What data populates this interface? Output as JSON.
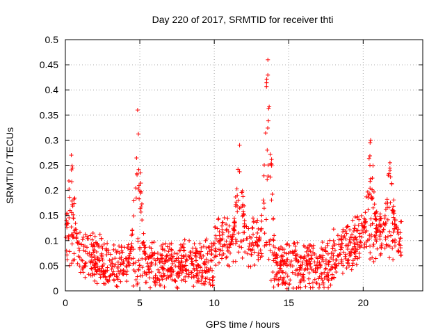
{
  "chart_data": {
    "type": "scatter",
    "title": "Day 220 of 2017, SRMTID for receiver thti",
    "xlabel": "GPS time / hours",
    "ylabel": "SRMTID / TECUs",
    "xlim": [
      0,
      24
    ],
    "ylim": [
      0,
      0.5
    ],
    "x_ticks": [
      "0",
      "5",
      "10",
      "15",
      "20"
    ],
    "y_ticks": [
      "0",
      "0.05",
      "0.1",
      "0.15",
      "0.2",
      "0.25",
      "0.3",
      "0.35",
      "0.4",
      "0.45",
      "0.5"
    ],
    "grid": true,
    "marker": "plus",
    "color": "#ff0000",
    "points_summary": {
      "x_range": [
        0,
        22.6
      ],
      "baseline_level": [
        0.03,
        0.12
      ],
      "peaks": [
        {
          "x": 0.4,
          "y": 0.27
        },
        {
          "x": 4.85,
          "y": 0.36
        },
        {
          "x": 11.7,
          "y": 0.29
        },
        {
          "x": 13.6,
          "y": 0.46
        },
        {
          "x": 20.5,
          "y": 0.3
        },
        {
          "x": 21.8,
          "y": 0.255
        }
      ]
    }
  }
}
